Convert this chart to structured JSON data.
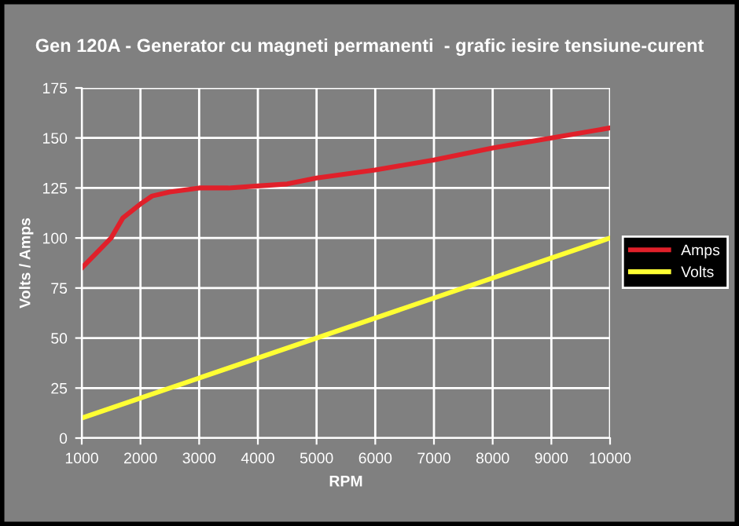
{
  "chart_data": {
    "type": "line",
    "title": "Gen 120A - Generator cu magneti permanenti  - grafic iesire tensiune-curent",
    "xlabel": "RPM",
    "ylabel": "Volts / Amps",
    "series": [
      {
        "name": "Amps",
        "color": "#e0202a",
        "x": [
          1000,
          1500,
          1700,
          2000,
          2200,
          2500,
          3000,
          3500,
          4000,
          4500,
          5000,
          6000,
          7000,
          8000,
          9000,
          10000
        ],
        "values": [
          85,
          100,
          110,
          117,
          121,
          123,
          125,
          125,
          126,
          127,
          130,
          134,
          139,
          145,
          150,
          155
        ]
      },
      {
        "name": "Volts",
        "color": "#ffff33",
        "x": [
          1000,
          10000
        ],
        "values": [
          10,
          100
        ]
      }
    ],
    "xlim": [
      1000,
      10000
    ],
    "xticks": [
      1000,
      2000,
      3000,
      4000,
      5000,
      6000,
      7000,
      8000,
      9000,
      10000
    ],
    "ylim": [
      0,
      175
    ],
    "yticks": [
      0,
      25,
      50,
      75,
      100,
      125,
      150,
      175
    ],
    "grid": true,
    "legend": "right",
    "marker": "none",
    "line_style": "solid"
  }
}
